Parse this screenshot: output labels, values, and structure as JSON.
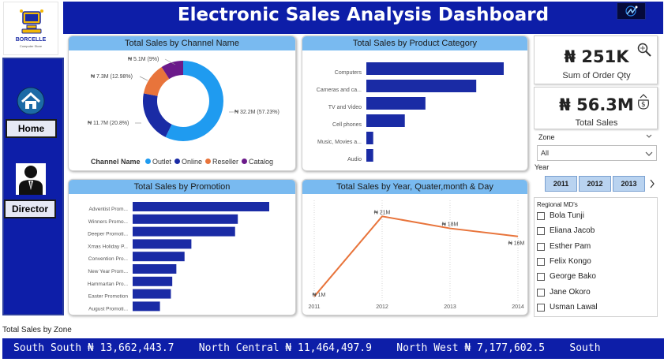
{
  "header": {
    "title": "Electronic Sales Analysis Dashboard"
  },
  "logo": {
    "name": "BORCELLE",
    "tagline": "Computer Store"
  },
  "nav": {
    "home_label": "Home",
    "director_label": "Director"
  },
  "channel": {
    "title": "Total Sales by Channel Name",
    "legend_title": "Channel Name",
    "legend": [
      {
        "name": "Outlet",
        "color": "#1f9bf0"
      },
      {
        "name": "Online",
        "color": "#1a2ba5"
      },
      {
        "name": "Reseller",
        "color": "#e8743b"
      },
      {
        "name": "Catalog",
        "color": "#6b1a8a"
      }
    ],
    "labels": {
      "outlet": "₦ 32.2M (57.23%)",
      "online": "₦ 11.7M (20.8%)",
      "reseller": "₦ 7.3M (12.98%)",
      "catalog": "₦ 5.1M (9%)"
    }
  },
  "product": {
    "title": "Total Sales by Product Category"
  },
  "promotion": {
    "title": "Total Sales by Promotion"
  },
  "trend": {
    "title": "Total Sales by Year, Quater,month & Day"
  },
  "chart_data": [
    {
      "type": "pie",
      "title": "Total Sales by Channel Name",
      "categories": [
        "Outlet",
        "Online",
        "Reseller",
        "Catalog"
      ],
      "values": [
        57.23,
        20.8,
        12.98,
        9.0
      ]
    },
    {
      "type": "bar",
      "title": "Total Sales by Product Category",
      "categories": [
        "Computers",
        "Cameras and ca...",
        "TV and Video",
        "Cell phones",
        "Music, Movies a...",
        "Audio"
      ],
      "values": [
        100,
        80,
        43,
        28,
        5,
        5
      ]
    },
    {
      "type": "bar",
      "title": "Total Sales by Promotion",
      "categories": [
        "Adventist Prom...",
        "Winners Promo...",
        "Deeper Promoti...",
        "Xmas Holiday P...",
        "Convention Pro...",
        "New Year Prom...",
        "Hammartan Pro...",
        "Easter Promotion",
        "August Promoti..."
      ],
      "values": [
        100,
        77,
        75,
        43,
        38,
        32,
        29,
        28,
        20
      ]
    },
    {
      "type": "line",
      "title": "Total Sales by Year, Quater,month & Day",
      "x": [
        "2011",
        "2012",
        "2013",
        "2014"
      ],
      "values": [
        1,
        21,
        18,
        16
      ],
      "data_labels": [
        "₦ 1M",
        "₦ 21M",
        "₦ 18M",
        "₦ 16M"
      ],
      "ylim": [
        0,
        25
      ]
    }
  ],
  "kpis": {
    "order_qty_value": "₦ 251K",
    "order_qty_label": "Sum of Order Qty",
    "total_sales_value": "₦ 56.3M",
    "total_sales_label": "Total Sales"
  },
  "zone": {
    "label": "Zone",
    "selected": "All"
  },
  "year": {
    "label": "Year",
    "options": [
      "2011",
      "2012",
      "2013"
    ]
  },
  "regional": {
    "label": "Regional MD's",
    "names": [
      "Bola Tunji",
      "Eliana Jacob",
      "Esther Pam",
      "Felix Kongo",
      "George Bako",
      "Jane Okoro",
      "Usman Lawal"
    ]
  },
  "zone_ticker": {
    "label": "Total Sales by Zone",
    "text": "South South ₦ 13,662,443.7    North Central ₦ 11,464,497.9    North West ₦ 7,177,602.5    South"
  },
  "colors": {
    "header": "#0d1ea8",
    "bar": "#1a2ba5",
    "line": "#e8743b",
    "title_band": "#79baf0"
  }
}
